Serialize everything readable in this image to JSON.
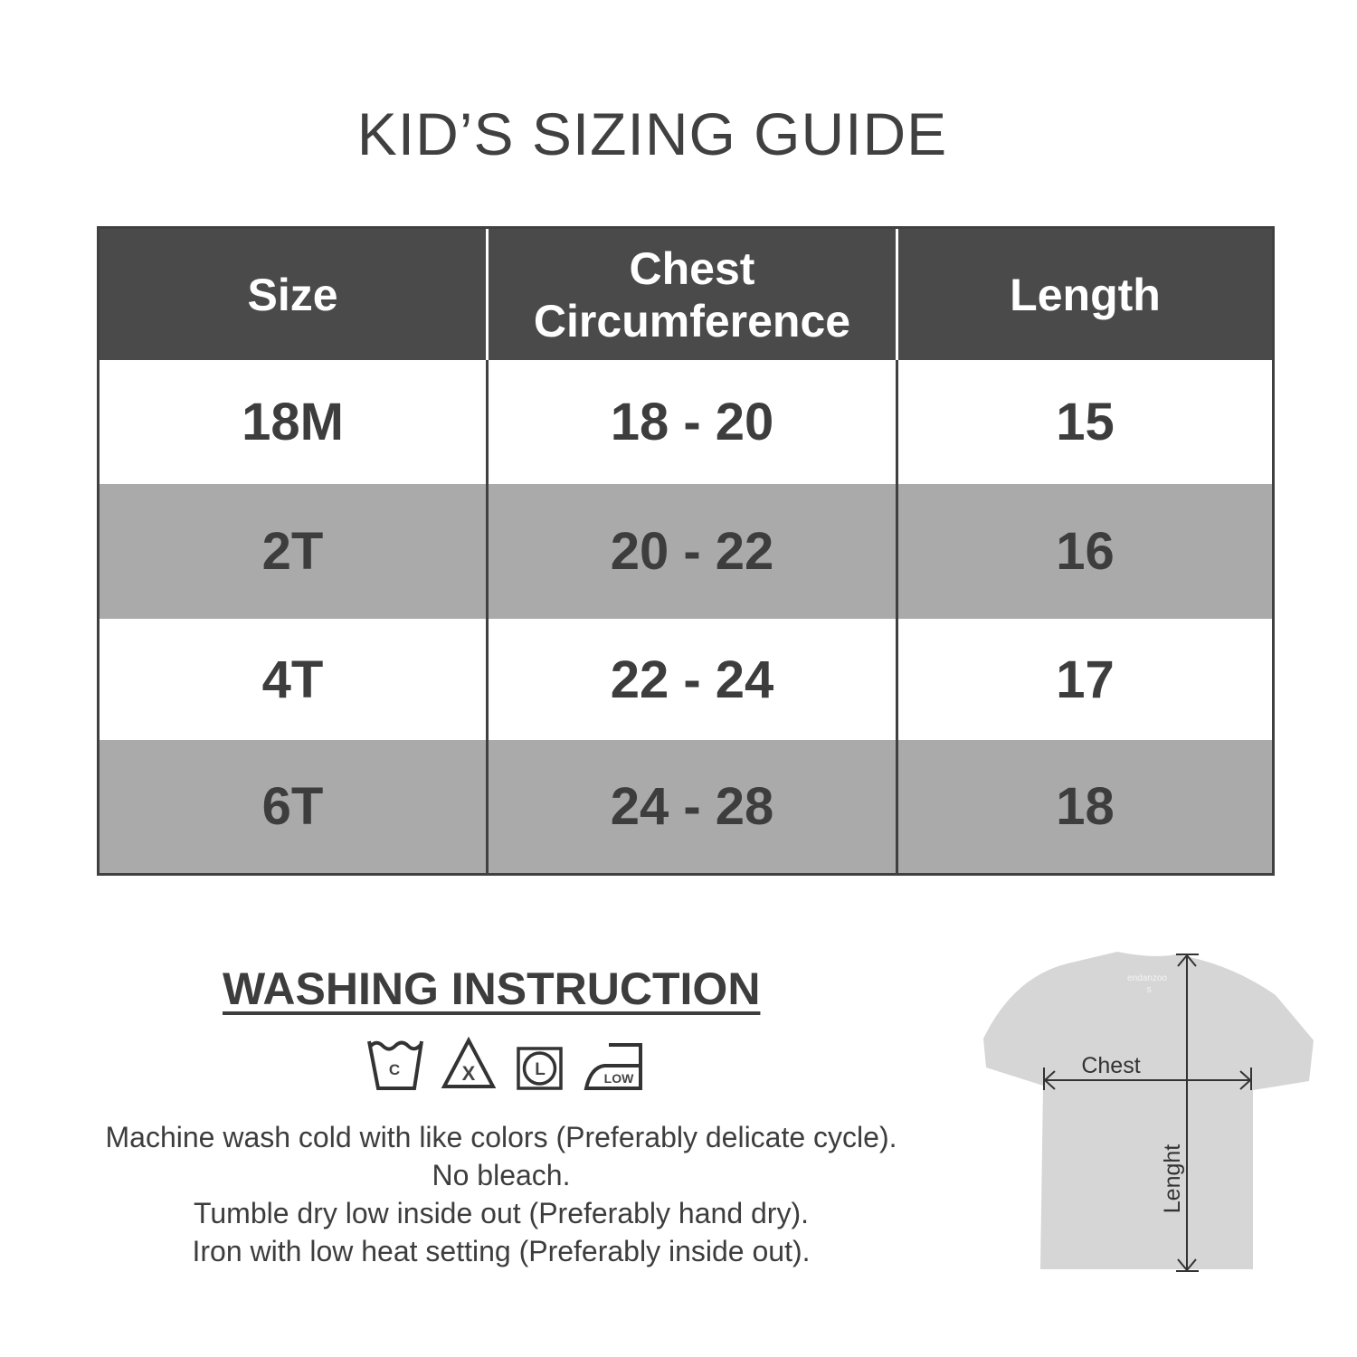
{
  "title": "KID’S SIZING GUIDE",
  "table": {
    "headers": [
      "Size",
      "Chest Circumference",
      "Length"
    ],
    "rows": [
      [
        "18M",
        "18 - 20",
        "15"
      ],
      [
        "2T",
        "20 - 22",
        "16"
      ],
      [
        "4T",
        "22 - 24",
        "17"
      ],
      [
        "6T",
        "24 - 28",
        "18"
      ]
    ]
  },
  "washing": {
    "title": "WASHING INSTRUCTION",
    "icons": [
      {
        "name": "wash-cold-icon",
        "label": "C"
      },
      {
        "name": "no-bleach-icon",
        "label": "X"
      },
      {
        "name": "tumble-dry-low-icon",
        "label": "L"
      },
      {
        "name": "iron-low-icon",
        "label": "LOW"
      }
    ],
    "lines": [
      "Machine wash cold with like colors (Preferably delicate cycle).",
      "No bleach.",
      "Tumble dry low inside out (Preferably hand dry).",
      "Iron with low heat setting (Preferably inside out)."
    ]
  },
  "diagram": {
    "chest_label": "Chest",
    "length_label": "Lenght",
    "brand": "endanzoo",
    "tag_size": "S"
  },
  "colors": {
    "header": "#4a4a4a",
    "alt_row": "#aaaaaa",
    "text": "#3d3d3d"
  }
}
